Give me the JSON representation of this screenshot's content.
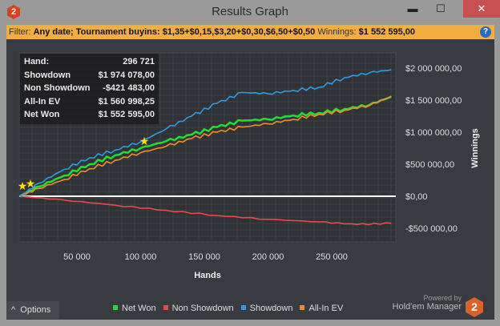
{
  "window": {
    "title": "Results Graph",
    "minimize": "▬",
    "maximize": "☐",
    "close": "✕",
    "app_icon": "2"
  },
  "filter": {
    "label": "Filter:",
    "value": "Any date; Tournament buyins: $1,35+$0,15,$3,20+$0,30,$6,50+$0,50",
    "winnings_label": "Winnings:",
    "winnings_value": "$1 552 595,00",
    "help": "?"
  },
  "tooltip": [
    {
      "k": "Hand:",
      "v": "296 721"
    },
    {
      "k": "Showdown",
      "v": "$1 974 078,00"
    },
    {
      "k": "Non Showdown",
      "v": "-$421 483,00"
    },
    {
      "k": "All-In EV",
      "v": "$1 560 998,25"
    },
    {
      "k": "Net Won",
      "v": "$1 552 595,00"
    }
  ],
  "options": {
    "label": "Options",
    "icon": "^"
  },
  "brand": {
    "powered": "Powered by",
    "name": "Hold'em Manager",
    "logo": "2"
  },
  "chart_data": {
    "type": "line",
    "xlabel": "Hands",
    "ylabel": "Winnings",
    "xlim": [
      0,
      300000
    ],
    "ylim": [
      -625000,
      2200000
    ],
    "xticks": [
      {
        "v": 50000,
        "l": "50 000"
      },
      {
        "v": 100000,
        "l": "100 000"
      },
      {
        "v": 150000,
        "l": "150 000"
      },
      {
        "v": 200000,
        "l": "200 000"
      },
      {
        "v": 250000,
        "l": "250 000"
      }
    ],
    "yticks": [
      {
        "v": 2000000,
        "l": "$2 000 000,00"
      },
      {
        "v": 1500000,
        "l": "$1 500 000,00"
      },
      {
        "v": 1000000,
        "l": "$1 000 000,00"
      },
      {
        "v": 500000,
        "l": "$500 000,00"
      },
      {
        "v": 0,
        "l": "$0,00"
      },
      {
        "v": -500000,
        "l": "-$500 000,00"
      }
    ],
    "series": [
      {
        "name": "Net Won",
        "color": "#22dd33",
        "x": [
          5000,
          20000,
          40000,
          60000,
          80000,
          100000,
          120000,
          140000,
          160000,
          180000,
          200000,
          220000,
          240000,
          260000,
          280000,
          296721
        ],
        "y": [
          0,
          150000,
          320000,
          500000,
          640000,
          750000,
          860000,
          960000,
          1080000,
          1180000,
          1200000,
          1260000,
          1300000,
          1360000,
          1430000,
          1552595
        ]
      },
      {
        "name": "Non Showdown",
        "color": "#e84a4a",
        "x": [
          5000,
          40000,
          80000,
          120000,
          160000,
          200000,
          240000,
          270000,
          296721
        ],
        "y": [
          0,
          -60000,
          -140000,
          -220000,
          -300000,
          -360000,
          -400000,
          -440000,
          -421483
        ]
      },
      {
        "name": "Showdown",
        "color": "#2e9be6",
        "x": [
          5000,
          20000,
          40000,
          60000,
          80000,
          100000,
          120000,
          140000,
          160000,
          180000,
          200000,
          220000,
          240000,
          260000,
          280000,
          296721
        ],
        "y": [
          0,
          200000,
          420000,
          600000,
          720000,
          850000,
          1050000,
          1250000,
          1450000,
          1620000,
          1600000,
          1650000,
          1700000,
          1850000,
          1930000,
          1974078
        ]
      },
      {
        "name": "All-In EV",
        "color": "#f08c2e",
        "x": [
          5000,
          20000,
          40000,
          60000,
          80000,
          100000,
          120000,
          140000,
          160000,
          180000,
          200000,
          220000,
          240000,
          260000,
          280000,
          296721
        ],
        "y": [
          0,
          120000,
          260000,
          430000,
          560000,
          680000,
          780000,
          900000,
          1000000,
          1080000,
          1130000,
          1200000,
          1280000,
          1340000,
          1420000,
          1560998
        ]
      }
    ]
  }
}
